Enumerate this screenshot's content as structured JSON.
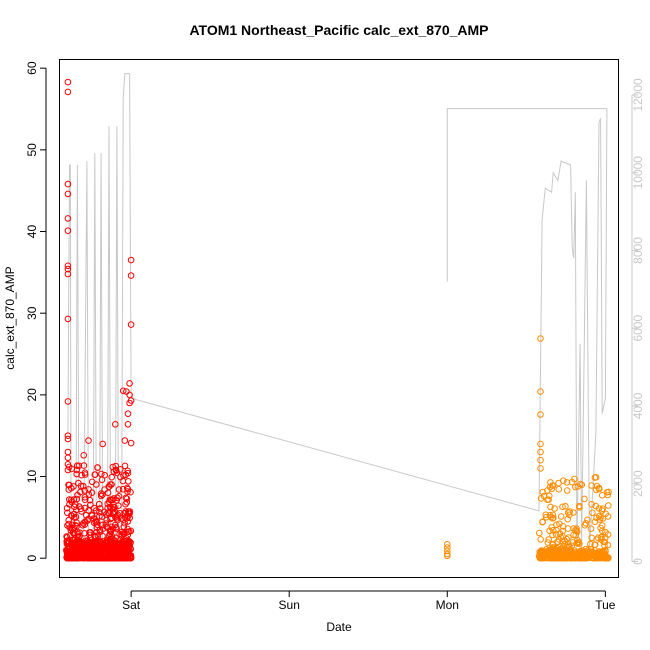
{
  "chart_data": {
    "type": "scatter",
    "title": "ATOM1 Northeast_Pacific calc_ext_870_AMP",
    "xlabel": "Date",
    "ylabel": "calc_ext_870_AMP",
    "x_ticks": [
      "Sat",
      "Sun",
      "Mon",
      "Tue"
    ],
    "x_tick_days": [
      1,
      2,
      3,
      4
    ],
    "xlim_days": [
      0.55,
      4.08
    ],
    "ylim": [
      -2.3,
      61
    ],
    "y_ticks": [
      0,
      10,
      20,
      30,
      40,
      50,
      60
    ],
    "y2lim": [
      -400,
      12900
    ],
    "y2_ticks": [
      0,
      2000,
      4000,
      6000,
      8000,
      10000,
      12000
    ],
    "y2_line_color": "#c8c8c8",
    "grid": false,
    "legend": "none",
    "series": [
      {
        "color": "#ff0000",
        "marker": "open-circle",
        "x_range_days": [
          0.59,
          1.0
        ],
        "points": [
          {
            "x": 0.6,
            "y": 58.3
          },
          {
            "x": 0.6,
            "y": 57.1
          },
          {
            "x": 0.6,
            "y": 45.8
          },
          {
            "x": 0.6,
            "y": 44.6
          },
          {
            "x": 0.6,
            "y": 41.6
          },
          {
            "x": 0.6,
            "y": 40.1
          },
          {
            "x": 0.6,
            "y": 35.8
          },
          {
            "x": 0.6,
            "y": 35.4
          },
          {
            "x": 0.6,
            "y": 34.8
          },
          {
            "x": 0.6,
            "y": 29.3
          },
          {
            "x": 0.6,
            "y": 19.2
          },
          {
            "x": 0.6,
            "y": 15.0
          },
          {
            "x": 0.6,
            "y": 14.6
          },
          {
            "x": 0.6,
            "y": 13.0
          },
          {
            "x": 0.6,
            "y": 12.3
          },
          {
            "x": 0.6,
            "y": 11.5
          },
          {
            "x": 0.6,
            "y": 10.8
          },
          {
            "x": 0.97,
            "y": 20.4
          },
          {
            "x": 0.99,
            "y": 21.4
          },
          {
            "x": 0.99,
            "y": 20.0
          },
          {
            "x": 0.99,
            "y": 19.0
          },
          {
            "x": 1.0,
            "y": 36.5
          },
          {
            "x": 1.0,
            "y": 34.6
          },
          {
            "x": 1.0,
            "y": 28.6
          },
          {
            "x": 1.0,
            "y": 19.3
          },
          {
            "x": 1.0,
            "y": 14.1
          },
          {
            "x": 0.98,
            "y": 16.4
          },
          {
            "x": 0.96,
            "y": 14.4
          },
          {
            "x": 0.98,
            "y": 17.7
          },
          {
            "x": 0.73,
            "y": 14.4
          },
          {
            "x": 0.7,
            "y": 12.6
          },
          {
            "x": 0.9,
            "y": 16.4
          },
          {
            "x": 0.95,
            "y": 20.5
          },
          {
            "x": 0.82,
            "y": 14.0
          }
        ],
        "bulk": {
          "x_min": 0.59,
          "x_max": 1.0,
          "y_min": 0.0,
          "y_max": 11.5,
          "typical": 2.0
        }
      },
      {
        "color": "#ff8c00",
        "marker": "open-circle",
        "x_range_days": [
          3.0,
          4.02
        ],
        "points": [
          {
            "x": 3.0,
            "y": 1.7
          },
          {
            "x": 3.0,
            "y": 1.3
          },
          {
            "x": 3.0,
            "y": 0.9
          },
          {
            "x": 3.0,
            "y": 0.5
          },
          {
            "x": 3.0,
            "y": 0.3
          },
          {
            "x": 3.59,
            "y": 26.9
          },
          {
            "x": 3.59,
            "y": 20.4
          },
          {
            "x": 3.59,
            "y": 17.6
          },
          {
            "x": 3.59,
            "y": 14.0
          },
          {
            "x": 3.59,
            "y": 13.0
          },
          {
            "x": 3.59,
            "y": 12.0
          },
          {
            "x": 3.59,
            "y": 11.0
          },
          {
            "x": 3.96,
            "y": 8.6
          },
          {
            "x": 3.96,
            "y": 6.1
          },
          {
            "x": 3.97,
            "y": 5.0
          },
          {
            "x": 4.0,
            "y": 3.2
          },
          {
            "x": 3.98,
            "y": 4.0
          }
        ],
        "bulk": {
          "x_min": 3.58,
          "x_max": 4.02,
          "y_min": 0.0,
          "y_max": 10.0,
          "typical": 1.0
        }
      }
    ],
    "secondary_line": {
      "color": "#c8c8c8",
      "axis": "right",
      "points": [
        {
          "x": 0.6,
          "y": 3200
        },
        {
          "x": 0.61,
          "y": 10200
        },
        {
          "x": 0.615,
          "y": 10200
        },
        {
          "x": 0.62,
          "y": 300
        },
        {
          "x": 0.65,
          "y": 300
        },
        {
          "x": 0.66,
          "y": 10200
        },
        {
          "x": 0.67,
          "y": 300
        },
        {
          "x": 0.7,
          "y": 300
        },
        {
          "x": 0.72,
          "y": 10300
        },
        {
          "x": 0.73,
          "y": 300
        },
        {
          "x": 0.76,
          "y": 300
        },
        {
          "x": 0.77,
          "y": 10500
        },
        {
          "x": 0.78,
          "y": 300
        },
        {
          "x": 0.8,
          "y": 300
        },
        {
          "x": 0.81,
          "y": 10500
        },
        {
          "x": 0.82,
          "y": 300
        },
        {
          "x": 0.85,
          "y": 300
        },
        {
          "x": 0.86,
          "y": 11200
        },
        {
          "x": 0.87,
          "y": 300
        },
        {
          "x": 0.9,
          "y": 300
        },
        {
          "x": 0.91,
          "y": 11200
        },
        {
          "x": 0.92,
          "y": 300
        },
        {
          "x": 0.94,
          "y": 300
        },
        {
          "x": 0.95,
          "y": 11900
        },
        {
          "x": 0.96,
          "y": 12550
        },
        {
          "x": 0.99,
          "y": 12550
        },
        {
          "x": 1.0,
          "y": 4200
        },
        {
          "x": 3.58,
          "y": 1300
        },
        {
          "x": 3.6,
          "y": 8800
        },
        {
          "x": 3.62,
          "y": 9600
        },
        {
          "x": 3.66,
          "y": 9500
        },
        {
          "x": 3.67,
          "y": 10000
        },
        {
          "x": 3.7,
          "y": 9800
        },
        {
          "x": 3.72,
          "y": 10300
        },
        {
          "x": 3.78,
          "y": 10200
        },
        {
          "x": 3.79,
          "y": 8100
        },
        {
          "x": 3.8,
          "y": 7800
        },
        {
          "x": 3.81,
          "y": 9500
        },
        {
          "x": 3.82,
          "y": 300
        },
        {
          "x": 3.84,
          "y": 5600
        },
        {
          "x": 3.85,
          "y": 300
        },
        {
          "x": 3.88,
          "y": 9800
        },
        {
          "x": 3.9,
          "y": 300
        },
        {
          "x": 3.94,
          "y": 3300
        },
        {
          "x": 3.96,
          "y": 11300
        },
        {
          "x": 3.97,
          "y": 11400
        },
        {
          "x": 3.98,
          "y": 3800
        },
        {
          "x": 4.0,
          "y": 4200
        },
        {
          "x": 4.01,
          "y": 11650
        }
      ],
      "segment2": [
        {
          "x": 3.0,
          "y": 7200
        },
        {
          "x": 3.0,
          "y": 11650
        },
        {
          "x": 4.01,
          "y": 11650
        }
      ]
    }
  }
}
